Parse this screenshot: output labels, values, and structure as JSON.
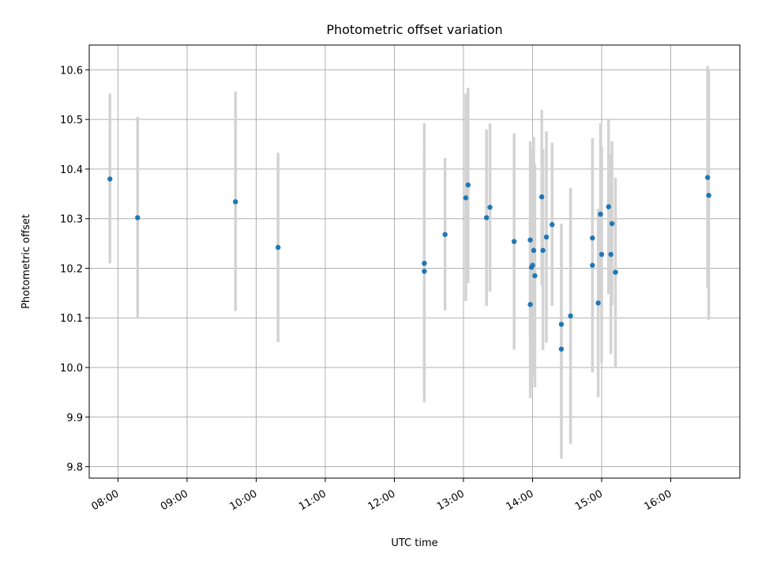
{
  "chart_data": {
    "type": "scatter",
    "title": "Photometric offset variation",
    "xlabel": "UTC time",
    "ylabel": "Photometric offset",
    "x_ticks": [
      "08:00",
      "09:00",
      "10:00",
      "11:00",
      "12:00",
      "13:00",
      "14:00",
      "15:00",
      "16:00"
    ],
    "y_ticks": [
      "9.8",
      "9.9",
      "10.0",
      "10.1",
      "10.2",
      "10.3",
      "10.4",
      "10.5",
      "10.6"
    ],
    "xlim": [
      "07:35",
      "17:00"
    ],
    "ylim": [
      9.777,
      10.65
    ],
    "grid": true,
    "colors": {
      "point": "#1f77b4",
      "errorbar": "#d3d3d3",
      "grid": "#b0b0b0"
    },
    "points": [
      {
        "t": "07:53",
        "y": 10.38,
        "lo": 10.21,
        "hi": 10.552
      },
      {
        "t": "08:17",
        "y": 10.302,
        "lo": 10.1,
        "hi": 10.505
      },
      {
        "t": "09:42",
        "y": 10.334,
        "lo": 10.114,
        "hi": 10.556
      },
      {
        "t": "10:19",
        "y": 10.242,
        "lo": 10.051,
        "hi": 10.433
      },
      {
        "t": "12:26",
        "y": 10.21,
        "lo": 9.93,
        "hi": 10.44
      },
      {
        "t": "12:26",
        "y": 10.194,
        "lo": 9.95,
        "hi": 10.492
      },
      {
        "t": "12:44",
        "y": 10.268,
        "lo": 10.115,
        "hi": 10.422
      },
      {
        "t": "13:02",
        "y": 10.342,
        "lo": 10.134,
        "hi": 10.552
      },
      {
        "t": "13:04",
        "y": 10.368,
        "lo": 10.17,
        "hi": 10.564
      },
      {
        "t": "13:20",
        "y": 10.302,
        "lo": 10.124,
        "hi": 10.48
      },
      {
        "t": "13:23",
        "y": 10.323,
        "lo": 10.153,
        "hi": 10.492
      },
      {
        "t": "13:44",
        "y": 10.254,
        "lo": 10.036,
        "hi": 10.472
      },
      {
        "t": "13:58",
        "y": 10.257,
        "lo": 10.06,
        "hi": 10.456
      },
      {
        "t": "13:58",
        "y": 10.127,
        "lo": 9.938,
        "hi": 10.315
      },
      {
        "t": "13:59",
        "y": 10.202,
        "lo": 9.96,
        "hi": 10.44
      },
      {
        "t": "14:00",
        "y": 10.206,
        "lo": 9.98,
        "hi": 10.42
      },
      {
        "t": "14:01",
        "y": 10.236,
        "lo": 10.0,
        "hi": 10.465
      },
      {
        "t": "14:02",
        "y": 10.185,
        "lo": 9.96,
        "hi": 10.41
      },
      {
        "t": "14:08",
        "y": 10.344,
        "lo": 10.166,
        "hi": 10.519
      },
      {
        "t": "14:09",
        "y": 10.236,
        "lo": 10.035,
        "hi": 10.44
      },
      {
        "t": "14:12",
        "y": 10.263,
        "lo": 10.05,
        "hi": 10.476
      },
      {
        "t": "14:17",
        "y": 10.288,
        "lo": 10.124,
        "hi": 10.453
      },
      {
        "t": "14:25",
        "y": 10.087,
        "lo": 9.88,
        "hi": 10.29
      },
      {
        "t": "14:25",
        "y": 10.037,
        "lo": 9.816,
        "hi": 10.258
      },
      {
        "t": "14:33",
        "y": 10.104,
        "lo": 9.846,
        "hi": 10.362
      },
      {
        "t": "14:52",
        "y": 10.261,
        "lo": 10.06,
        "hi": 10.462
      },
      {
        "t": "14:52",
        "y": 10.206,
        "lo": 9.99,
        "hi": 10.422
      },
      {
        "t": "14:57",
        "y": 10.13,
        "lo": 9.94,
        "hi": 10.32
      },
      {
        "t": "14:59",
        "y": 10.309,
        "lo": 10.125,
        "hi": 10.492
      },
      {
        "t": "15:00",
        "y": 10.228,
        "lo": 10.01,
        "hi": 10.445
      },
      {
        "t": "15:06",
        "y": 10.324,
        "lo": 10.148,
        "hi": 10.502
      },
      {
        "t": "15:08",
        "y": 10.228,
        "lo": 10.027,
        "hi": 10.43
      },
      {
        "t": "15:09",
        "y": 10.29,
        "lo": 10.125,
        "hi": 10.456
      },
      {
        "t": "15:12",
        "y": 10.192,
        "lo": 10.0,
        "hi": 10.383
      },
      {
        "t": "16:32",
        "y": 10.383,
        "lo": 10.16,
        "hi": 10.608
      },
      {
        "t": "16:33",
        "y": 10.347,
        "lo": 10.096,
        "hi": 10.598
      }
    ]
  }
}
